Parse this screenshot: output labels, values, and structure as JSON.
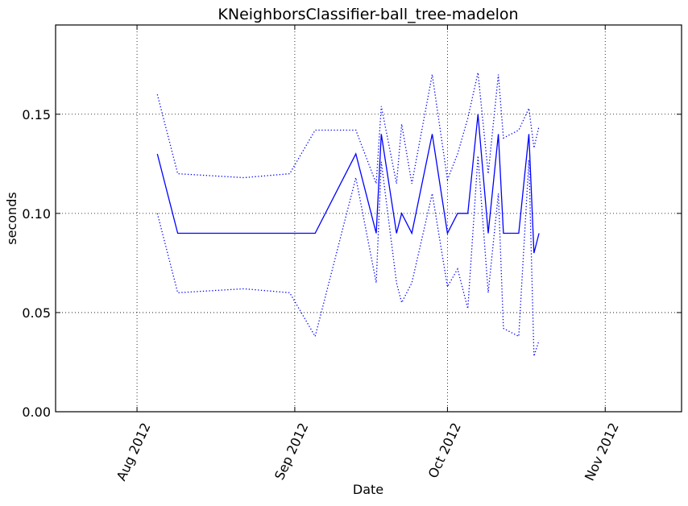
{
  "chart_data": {
    "type": "line",
    "title": "KNeighborsClassifier-ball_tree-madelon",
    "xlabel": "Date",
    "ylabel": "seconds",
    "x_axis_type": "date",
    "xlim": [
      "2012-07-16",
      "2012-11-16"
    ],
    "ylim": [
      0,
      0.195
    ],
    "x_ticks": [
      {
        "date": "2012-08-01",
        "label": "Aug 2012"
      },
      {
        "date": "2012-09-01",
        "label": "Sep 2012"
      },
      {
        "date": "2012-10-01",
        "label": "Oct 2012"
      },
      {
        "date": "2012-11-01",
        "label": "Nov 2012"
      }
    ],
    "y_ticks": [
      {
        "value": 0.0,
        "label": "0.00"
      },
      {
        "value": 0.05,
        "label": "0.05"
      },
      {
        "value": 0.1,
        "label": "0.10"
      },
      {
        "value": 0.15,
        "label": "0.15"
      }
    ],
    "grid": true,
    "x_tick_rotation": "65 degrees",
    "series": [
      {
        "style": "solid",
        "color": "#0000ff",
        "points": [
          [
            "2012-08-05",
            0.13
          ],
          [
            "2012-08-09",
            0.09
          ],
          [
            "2012-09-05",
            0.09
          ],
          [
            "2012-09-13",
            0.13
          ],
          [
            "2012-09-17",
            0.09
          ],
          [
            "2012-09-18",
            0.14
          ],
          [
            "2012-09-21",
            0.09
          ],
          [
            "2012-09-22",
            0.1
          ],
          [
            "2012-09-24",
            0.09
          ],
          [
            "2012-09-28",
            0.14
          ],
          [
            "2012-10-01",
            0.09
          ],
          [
            "2012-10-03",
            0.1
          ],
          [
            "2012-10-05",
            0.1
          ],
          [
            "2012-10-07",
            0.15
          ],
          [
            "2012-10-09",
            0.09
          ],
          [
            "2012-10-11",
            0.14
          ],
          [
            "2012-10-12",
            0.09
          ],
          [
            "2012-10-15",
            0.09
          ],
          [
            "2012-10-17",
            0.14
          ],
          [
            "2012-10-18",
            0.08
          ],
          [
            "2012-10-19",
            0.09
          ]
        ]
      },
      {
        "style": "dotted",
        "color": "#0000ff",
        "points": [
          [
            "2012-08-05",
            0.16
          ],
          [
            "2012-08-09",
            0.12
          ],
          [
            "2012-08-22",
            0.118
          ],
          [
            "2012-08-31",
            0.12
          ],
          [
            "2012-09-05",
            0.142
          ],
          [
            "2012-09-13",
            0.142
          ],
          [
            "2012-09-17",
            0.115
          ],
          [
            "2012-09-18",
            0.154
          ],
          [
            "2012-09-21",
            0.115
          ],
          [
            "2012-09-22",
            0.145
          ],
          [
            "2012-09-24",
            0.115
          ],
          [
            "2012-09-28",
            0.17
          ],
          [
            "2012-10-01",
            0.117
          ],
          [
            "2012-10-03",
            0.13
          ],
          [
            "2012-10-05",
            0.148
          ],
          [
            "2012-10-07",
            0.171
          ],
          [
            "2012-10-09",
            0.12
          ],
          [
            "2012-10-11",
            0.17
          ],
          [
            "2012-10-12",
            0.138
          ],
          [
            "2012-10-15",
            0.142
          ],
          [
            "2012-10-17",
            0.153
          ],
          [
            "2012-10-18",
            0.133
          ],
          [
            "2012-10-19",
            0.144
          ]
        ]
      },
      {
        "style": "dotted",
        "color": "#0000ff",
        "points": [
          [
            "2012-08-05",
            0.1
          ],
          [
            "2012-08-09",
            0.06
          ],
          [
            "2012-08-22",
            0.062
          ],
          [
            "2012-08-31",
            0.06
          ],
          [
            "2012-09-05",
            0.038
          ],
          [
            "2012-09-13",
            0.118
          ],
          [
            "2012-09-17",
            0.065
          ],
          [
            "2012-09-18",
            0.126
          ],
          [
            "2012-09-21",
            0.065
          ],
          [
            "2012-09-22",
            0.055
          ],
          [
            "2012-09-24",
            0.065
          ],
          [
            "2012-09-28",
            0.11
          ],
          [
            "2012-10-01",
            0.063
          ],
          [
            "2012-10-03",
            0.072
          ],
          [
            "2012-10-05",
            0.052
          ],
          [
            "2012-10-07",
            0.129
          ],
          [
            "2012-10-09",
            0.06
          ],
          [
            "2012-10-11",
            0.11
          ],
          [
            "2012-10-12",
            0.042
          ],
          [
            "2012-10-15",
            0.038
          ],
          [
            "2012-10-17",
            0.127
          ],
          [
            "2012-10-18",
            0.028
          ],
          [
            "2012-10-19",
            0.036
          ]
        ]
      }
    ]
  }
}
